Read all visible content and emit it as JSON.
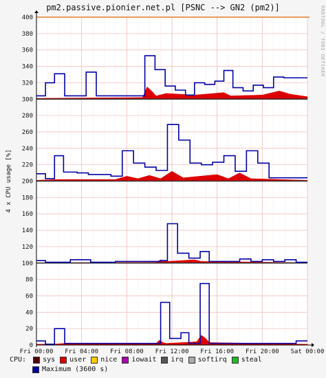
{
  "title": "pm2.passive.pionier.net.pl [PSNC --> GN2 (pm2)]",
  "side_label": "RRDTOOL / TOBI OETIKER",
  "colors": {
    "background": "#f5f5f5",
    "plot_background": "#ffffff",
    "grid": "#f0c0c0",
    "user": "#dd0000",
    "maximum": "#0000a8",
    "separator": "#333333",
    "top_line": "#dd6600"
  },
  "legend": {
    "title": "CPU:",
    "items": [
      {
        "label": "sys",
        "color": "#550000"
      },
      {
        "label": "user",
        "color": "#dd0000"
      },
      {
        "label": "nice",
        "color": "#ffcc00"
      },
      {
        "label": "iowait",
        "color": "#aa00aa"
      },
      {
        "label": "irq",
        "color": "#555555"
      },
      {
        "label": "softirq",
        "color": "#aaaaaa"
      },
      {
        "label": "steal",
        "color": "#22bb22"
      },
      {
        "label": "Maximum (3600 s)",
        "color": "#0000a8"
      }
    ]
  },
  "chart_data": {
    "type": "area",
    "ylabel": "4 x CPU usage [%]",
    "ylim": [
      0,
      400
    ],
    "yticks": [
      0,
      20,
      40,
      60,
      80,
      100,
      120,
      140,
      160,
      180,
      200,
      220,
      240,
      260,
      280,
      300,
      320,
      340,
      360,
      380,
      400
    ],
    "x_labels": [
      "Fri 00:00",
      "Fri 04:00",
      "Fri 08:00",
      "Fri 12:00",
      "Fri 16:00",
      "Fri 20:00",
      "Sat 00:00"
    ],
    "x_range_hours": [
      0,
      24
    ],
    "stack_separators": [
      100,
      200,
      300
    ],
    "panels": [
      {
        "name": "cpu0",
        "baseline": 0,
        "maximum": [
          [
            0,
            5
          ],
          [
            0.8,
            5
          ],
          [
            0.8,
            1
          ],
          [
            1.6,
            1
          ],
          [
            1.6,
            20
          ],
          [
            2.5,
            20
          ],
          [
            2.5,
            2
          ],
          [
            11,
            2
          ],
          [
            11,
            52
          ],
          [
            11.8,
            52
          ],
          [
            11.8,
            8
          ],
          [
            12.8,
            8
          ],
          [
            12.8,
            15
          ],
          [
            13.5,
            15
          ],
          [
            13.5,
            2
          ],
          [
            14.5,
            2
          ],
          [
            14.5,
            75
          ],
          [
            15.3,
            75
          ],
          [
            15.3,
            2
          ],
          [
            23,
            2
          ],
          [
            23,
            5
          ],
          [
            24,
            5
          ]
        ],
        "user": [
          [
            0,
            1
          ],
          [
            1.5,
            1
          ],
          [
            2.5,
            2
          ],
          [
            10.6,
            2
          ],
          [
            10.9,
            6
          ],
          [
            11.2,
            3
          ],
          [
            11.5,
            2
          ],
          [
            14.2,
            4
          ],
          [
            14.6,
            12
          ],
          [
            15.0,
            8
          ],
          [
            15.3,
            3
          ],
          [
            24,
            1
          ]
        ]
      },
      {
        "name": "cpu1",
        "baseline": 100,
        "maximum": [
          [
            0,
            103
          ],
          [
            0.8,
            103
          ],
          [
            0.8,
            101
          ],
          [
            3.0,
            101
          ],
          [
            3.0,
            104
          ],
          [
            4.8,
            104
          ],
          [
            4.8,
            101
          ],
          [
            7.0,
            101
          ],
          [
            7.0,
            102
          ],
          [
            11.0,
            102
          ],
          [
            11.0,
            103
          ],
          [
            11.6,
            103
          ],
          [
            11.6,
            148
          ],
          [
            12.5,
            148
          ],
          [
            12.5,
            112
          ],
          [
            13.5,
            112
          ],
          [
            13.5,
            106
          ],
          [
            14.5,
            106
          ],
          [
            14.5,
            114
          ],
          [
            15.3,
            114
          ],
          [
            15.3,
            102
          ],
          [
            18.0,
            102
          ],
          [
            18.0,
            105
          ],
          [
            19.0,
            105
          ],
          [
            19.0,
            102
          ],
          [
            20.0,
            102
          ],
          [
            20.0,
            104
          ],
          [
            21.0,
            104
          ],
          [
            21.0,
            102
          ],
          [
            22.0,
            102
          ],
          [
            22.0,
            104
          ],
          [
            23.0,
            104
          ],
          [
            23.0,
            101
          ],
          [
            24,
            101
          ]
        ],
        "user": [
          [
            0,
            100.5
          ],
          [
            10.6,
            101
          ],
          [
            11.0,
            104
          ],
          [
            11.5,
            102
          ],
          [
            14.0,
            104
          ],
          [
            14.6,
            102
          ],
          [
            24,
            100.5
          ]
        ]
      },
      {
        "name": "cpu2",
        "baseline": 200,
        "maximum": [
          [
            0,
            209
          ],
          [
            0.8,
            209
          ],
          [
            0.8,
            203
          ],
          [
            1.6,
            203
          ],
          [
            1.6,
            231
          ],
          [
            2.4,
            231
          ],
          [
            2.4,
            211
          ],
          [
            3.6,
            211
          ],
          [
            3.6,
            210
          ],
          [
            4.6,
            210
          ],
          [
            4.6,
            208
          ],
          [
            6.6,
            208
          ],
          [
            6.6,
            206
          ],
          [
            7.6,
            206
          ],
          [
            7.6,
            237
          ],
          [
            8.6,
            237
          ],
          [
            8.6,
            222
          ],
          [
            9.6,
            222
          ],
          [
            9.6,
            217
          ],
          [
            10.6,
            217
          ],
          [
            10.6,
            213
          ],
          [
            11.6,
            213
          ],
          [
            11.6,
            269
          ],
          [
            12.6,
            269
          ],
          [
            12.6,
            250
          ],
          [
            13.6,
            250
          ],
          [
            13.6,
            222
          ],
          [
            14.6,
            222
          ],
          [
            14.6,
            220
          ],
          [
            15.6,
            220
          ],
          [
            15.6,
            223
          ],
          [
            16.6,
            223
          ],
          [
            16.6,
            231
          ],
          [
            17.6,
            231
          ],
          [
            17.6,
            212
          ],
          [
            18.6,
            212
          ],
          [
            18.6,
            237
          ],
          [
            19.6,
            237
          ],
          [
            19.6,
            222
          ],
          [
            20.6,
            222
          ],
          [
            20.6,
            204
          ],
          [
            24,
            204
          ]
        ],
        "user": [
          [
            0,
            201
          ],
          [
            2,
            202
          ],
          [
            7,
            202
          ],
          [
            8,
            206
          ],
          [
            9,
            203
          ],
          [
            10,
            207
          ],
          [
            11,
            203
          ],
          [
            12,
            212
          ],
          [
            13,
            204
          ],
          [
            16,
            208
          ],
          [
            17,
            203
          ],
          [
            18,
            210
          ],
          [
            19,
            203
          ],
          [
            24,
            201
          ]
        ]
      },
      {
        "name": "cpu3",
        "baseline": 300,
        "maximum": [
          [
            0,
            304
          ],
          [
            0.8,
            304
          ],
          [
            0.8,
            320
          ],
          [
            1.6,
            320
          ],
          [
            1.6,
            331
          ],
          [
            2.5,
            331
          ],
          [
            2.5,
            304
          ],
          [
            4.4,
            304
          ],
          [
            4.4,
            333
          ],
          [
            5.3,
            333
          ],
          [
            5.3,
            304
          ],
          [
            9.6,
            304
          ],
          [
            9.6,
            353
          ],
          [
            10.5,
            353
          ],
          [
            10.5,
            336
          ],
          [
            11.4,
            336
          ],
          [
            11.4,
            316
          ],
          [
            12.3,
            316
          ],
          [
            12.3,
            311
          ],
          [
            13.2,
            311
          ],
          [
            13.2,
            305
          ],
          [
            14.0,
            305
          ],
          [
            14.0,
            320
          ],
          [
            14.9,
            320
          ],
          [
            14.9,
            318
          ],
          [
            15.8,
            318
          ],
          [
            15.8,
            322
          ],
          [
            16.6,
            322
          ],
          [
            16.6,
            335
          ],
          [
            17.4,
            335
          ],
          [
            17.4,
            314
          ],
          [
            18.3,
            314
          ],
          [
            18.3,
            310
          ],
          [
            19.2,
            310
          ],
          [
            19.2,
            317
          ],
          [
            20.1,
            317
          ],
          [
            20.1,
            314
          ],
          [
            21.0,
            314
          ],
          [
            21.0,
            327
          ],
          [
            21.9,
            327
          ],
          [
            21.9,
            326
          ],
          [
            24,
            326
          ]
        ],
        "user": [
          [
            0,
            301
          ],
          [
            9.4,
            302
          ],
          [
            9.8,
            315
          ],
          [
            10.2,
            310
          ],
          [
            10.6,
            304
          ],
          [
            11.5,
            307
          ],
          [
            14,
            305
          ],
          [
            16.6,
            308
          ],
          [
            17.2,
            304
          ],
          [
            20,
            305
          ],
          [
            21.5,
            310
          ],
          [
            22.5,
            306
          ],
          [
            24,
            303
          ]
        ]
      }
    ]
  }
}
